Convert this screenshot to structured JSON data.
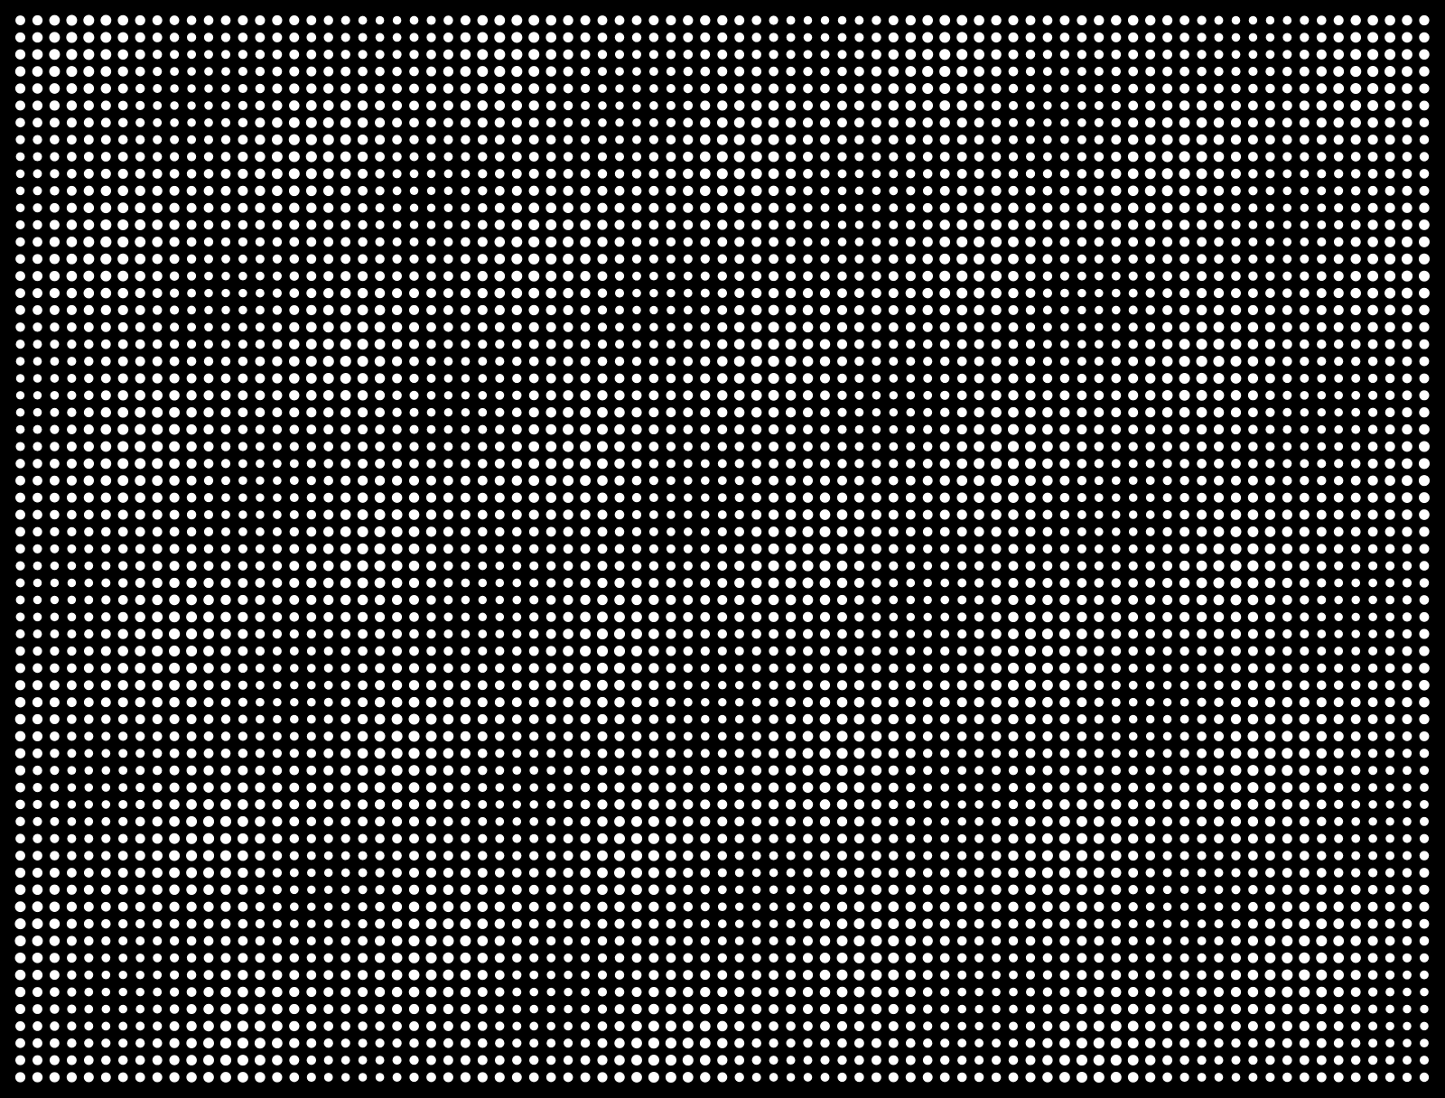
{
  "pattern": {
    "background_color": "#000000",
    "dot_color": "#ffffff"
  }
}
